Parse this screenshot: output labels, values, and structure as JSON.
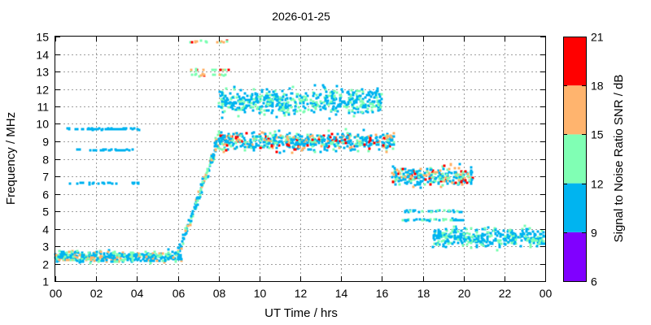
{
  "chart_data": {
    "type": "heatmap",
    "title": "2026-01-25",
    "xlabel": "UT Time / hrs",
    "ylabel": "Frequency / MHz",
    "xlim": [
      0,
      24
    ],
    "ylim": [
      1,
      15
    ],
    "x_ticks": [
      "00",
      "02",
      "04",
      "06",
      "08",
      "10",
      "12",
      "14",
      "16",
      "18",
      "20",
      "22",
      "00"
    ],
    "y_ticks": [
      "1",
      "2",
      "3",
      "4",
      "5",
      "6",
      "7",
      "8",
      "9",
      "10",
      "11",
      "12",
      "13",
      "14",
      "15"
    ],
    "grid": true,
    "colorbar": {
      "label": "Signal to Noise Ratio SNR / dB",
      "range": [
        6,
        21
      ],
      "ticks": [
        "6",
        "9",
        "12",
        "15",
        "18",
        "21"
      ],
      "bands": [
        {
          "min": 6,
          "max": 9,
          "color": "#8000ff"
        },
        {
          "min": 9,
          "max": 12,
          "color": "#00b4f0"
        },
        {
          "min": 12,
          "max": 15,
          "color": "#80ffb4"
        },
        {
          "min": 15,
          "max": 18,
          "color": "#ffb46e"
        },
        {
          "min": 18,
          "max": 21,
          "color": "#ff0000"
        }
      ]
    },
    "regions": [
      {
        "hours": [
          0,
          6.2
        ],
        "mhz_mean": 2.4,
        "mhz_spread": 0.45,
        "snr": [
          9,
          17
        ]
      },
      {
        "hours": [
          0.6,
          4.2
        ],
        "mhz": [
          8.5,
          9.7,
          6.6
        ],
        "snr": [
          9,
          12
        ]
      },
      {
        "hours": [
          6,
          8
        ],
        "mhz_trace_from": 2.5,
        "mhz_trace_to": 9.0,
        "snr": [
          9,
          18
        ]
      },
      {
        "hours": [
          7.8,
          16.6
        ],
        "mhz_mean": 9.0,
        "mhz_spread": 0.8,
        "snr": [
          9,
          20
        ]
      },
      {
        "hours": [
          8,
          16
        ],
        "mhz_mean": 11.3,
        "mhz_spread": 1.1,
        "snr": [
          9,
          15
        ]
      },
      {
        "hours": [
          6.6,
          8.5
        ],
        "mhz": [
          14.7,
          12.8,
          13.1
        ],
        "snr": [
          12,
          20
        ]
      },
      {
        "hours": [
          16.5,
          20.5
        ],
        "mhz_mean": 7.0,
        "mhz_spread": 0.8,
        "snr": [
          9,
          20
        ]
      },
      {
        "hours": [
          18.5,
          24
        ],
        "mhz_mean": 3.5,
        "mhz_spread": 0.8,
        "snr": [
          9,
          15
        ]
      },
      {
        "hours": [
          17,
          20
        ],
        "mhz": [
          4.5,
          5.0
        ],
        "snr": [
          9,
          15
        ]
      }
    ]
  }
}
